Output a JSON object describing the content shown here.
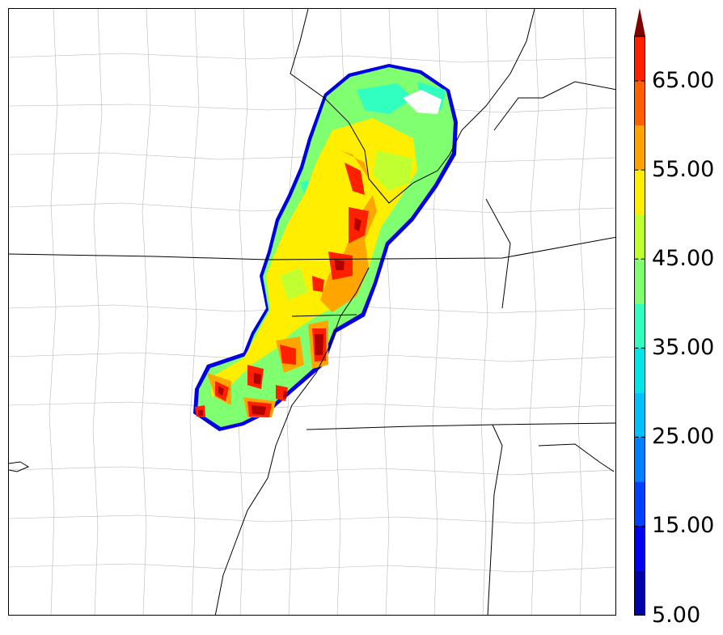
{
  "colorbar": {
    "tick_labels": [
      "5.00",
      "15.00",
      "25.00",
      "35.00",
      "45.00",
      "55.00",
      "65.00"
    ],
    "tick_values": [
      5,
      15,
      25,
      35,
      45,
      55,
      65
    ],
    "levels": [
      5,
      10,
      15,
      20,
      25,
      30,
      35,
      40,
      45,
      50,
      55,
      60,
      65,
      70
    ],
    "colors": [
      "#0000a8",
      "#0000f0",
      "#0040ff",
      "#0080ff",
      "#00c0ff",
      "#00e5e5",
      "#30ffc0",
      "#80ff70",
      "#c0ff30",
      "#ffee00",
      "#ffa500",
      "#ff6000",
      "#ff2000",
      "#b00000"
    ],
    "extend_color": "#800000",
    "extend": "max"
  },
  "map": {
    "basemap": "county-and-state-boundaries",
    "line_color": "#000000",
    "county_line_color": "#aaaaaa",
    "field_background": "#ffffff"
  }
}
